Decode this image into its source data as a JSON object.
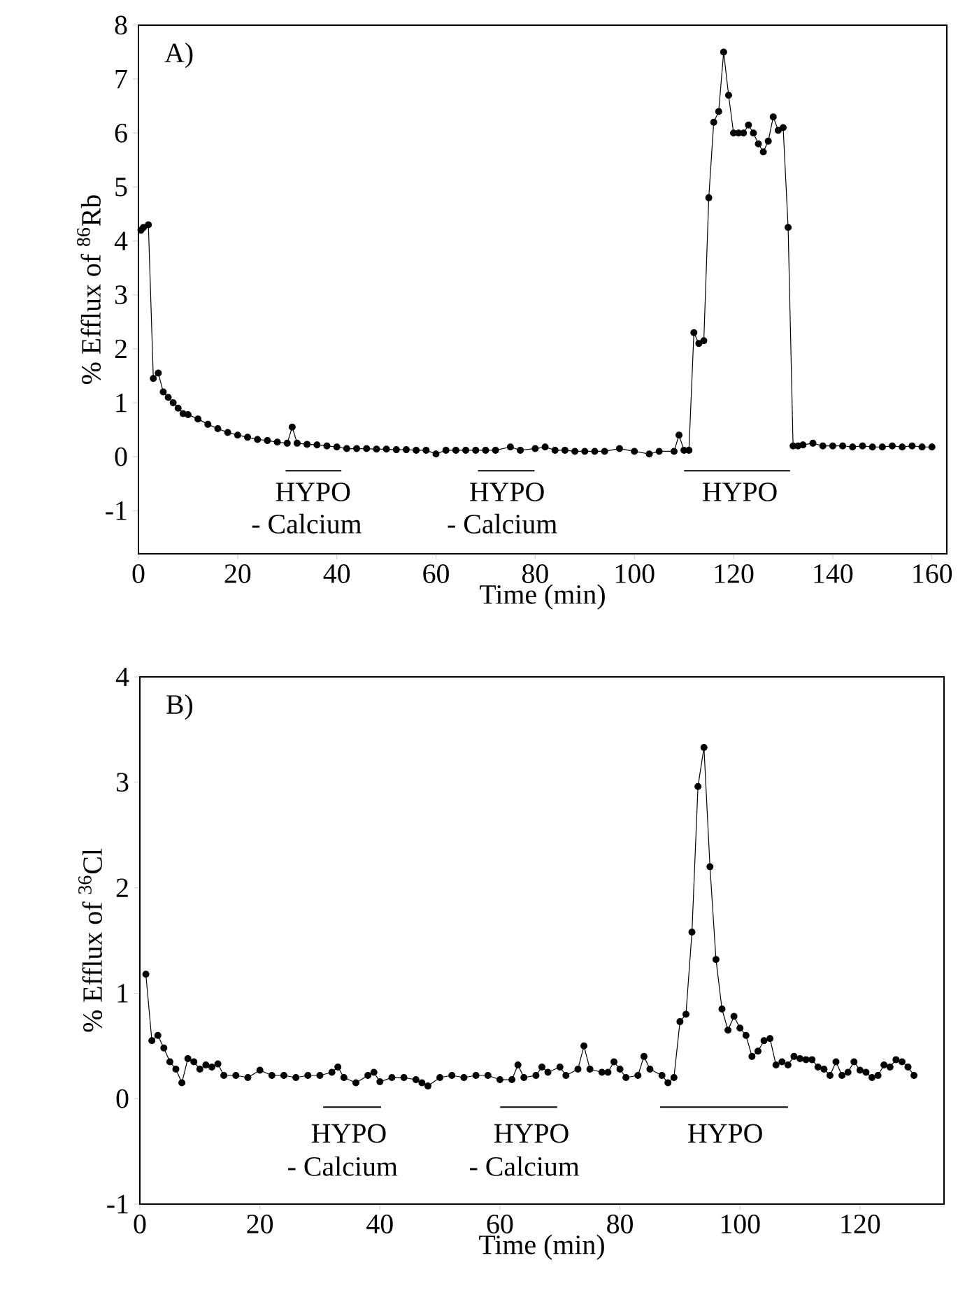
{
  "chart_data": [
    {
      "type": "line",
      "xlabel": "Time (min)",
      "ylabel": "% Efflux of $^{86}$Rb",
      "annotations": [
        "A)",
        "HYPO",
        "- Calcium",
        "HYPO",
        "- Calcium",
        "HYPO"
      ],
      "xlim": [
        0,
        163
      ],
      "ylim": [
        -1.8,
        8
      ],
      "xticks": [
        0,
        20,
        40,
        60,
        80,
        100,
        120,
        140,
        160
      ],
      "yticks": [
        -1,
        0,
        1,
        2,
        3,
        4,
        5,
        6,
        7,
        8
      ],
      "marker": "circle",
      "line_style": "solid",
      "series": [
        {
          "color": "#000000",
          "x": [
            0.5,
            1,
            2,
            3,
            4,
            5,
            6,
            7,
            8,
            9,
            10,
            12,
            14,
            16,
            18,
            20,
            22,
            24,
            26,
            28,
            30,
            31,
            32,
            34,
            36,
            38,
            40,
            42,
            44,
            46,
            48,
            50,
            52,
            54,
            56,
            58,
            60,
            62,
            64,
            66,
            68,
            70,
            72,
            75,
            77,
            80,
            82,
            84,
            86,
            88,
            90,
            92,
            94,
            97,
            100,
            103,
            105,
            108,
            109,
            110,
            111,
            112,
            113,
            114,
            115,
            116,
            117,
            118,
            119,
            120,
            121,
            122,
            123,
            124,
            125,
            126,
            127,
            128,
            129,
            130,
            131,
            132,
            133,
            134,
            136,
            138,
            140,
            142,
            144,
            146,
            148,
            150,
            152,
            154,
            156,
            158,
            160
          ],
          "values": [
            4.2,
            4.25,
            4.3,
            1.45,
            1.55,
            1.2,
            1.1,
            1.0,
            0.9,
            0.8,
            0.78,
            0.7,
            0.6,
            0.52,
            0.45,
            0.4,
            0.36,
            0.32,
            0.3,
            0.27,
            0.25,
            0.55,
            0.25,
            0.23,
            0.22,
            0.2,
            0.18,
            0.15,
            0.15,
            0.15,
            0.14,
            0.14,
            0.13,
            0.13,
            0.12,
            0.12,
            0.05,
            0.12,
            0.12,
            0.12,
            0.12,
            0.12,
            0.12,
            0.18,
            0.12,
            0.15,
            0.18,
            0.12,
            0.12,
            0.1,
            0.1,
            0.1,
            0.1,
            0.15,
            0.1,
            0.05,
            0.1,
            0.1,
            0.4,
            0.12,
            0.12,
            2.3,
            2.1,
            2.15,
            4.8,
            6.2,
            6.4,
            7.5,
            6.7,
            6.0,
            6.0,
            6.0,
            6.15,
            6.0,
            5.8,
            5.65,
            5.85,
            6.3,
            6.05,
            6.1,
            4.25,
            0.2,
            0.2,
            0.22,
            0.25,
            0.2,
            0.2,
            0.2,
            0.18,
            0.2,
            0.18,
            0.18,
            0.2,
            0.18,
            0.2,
            0.18,
            0.18
          ]
        }
      ]
    },
    {
      "type": "line",
      "xlabel": "Time (min)",
      "ylabel": "% Efflux of $^{36}$Cl",
      "annotations": [
        "B)",
        "HYPO",
        "- Calcium",
        "HYPO",
        "- Calcium",
        "HYPO"
      ],
      "xlim": [
        0,
        134
      ],
      "ylim": [
        -1,
        4
      ],
      "xticks": [
        0,
        20,
        40,
        60,
        80,
        100,
        120
      ],
      "yticks": [
        -1,
        0,
        1,
        2,
        3,
        4
      ],
      "marker": "circle",
      "line_style": "solid",
      "series": [
        {
          "color": "#000000",
          "x": [
            1,
            2,
            3,
            4,
            5,
            6,
            7,
            8,
            9,
            10,
            11,
            12,
            13,
            14,
            16,
            18,
            20,
            22,
            24,
            26,
            28,
            30,
            32,
            33,
            34,
            36,
            38,
            39,
            40,
            42,
            44,
            46,
            47,
            48,
            50,
            52,
            54,
            56,
            58,
            60,
            62,
            63,
            64,
            66,
            67,
            68,
            70,
            71,
            73,
            74,
            75,
            77,
            78,
            79,
            80,
            81,
            83,
            84,
            85,
            87,
            88,
            89,
            90,
            91,
            92,
            93,
            94,
            95,
            96,
            97,
            98,
            99,
            100,
            101,
            102,
            103,
            104,
            105,
            106,
            107,
            108,
            109,
            110,
            111,
            112,
            113,
            114,
            115,
            116,
            117,
            118,
            119,
            120,
            121,
            122,
            123,
            124,
            125,
            126,
            127,
            128,
            129
          ],
          "values": [
            1.18,
            0.55,
            0.6,
            0.48,
            0.35,
            0.28,
            0.15,
            0.38,
            0.35,
            0.28,
            0.32,
            0.3,
            0.33,
            0.22,
            0.22,
            0.2,
            0.27,
            0.22,
            0.22,
            0.2,
            0.22,
            0.22,
            0.25,
            0.3,
            0.2,
            0.15,
            0.22,
            0.25,
            0.16,
            0.2,
            0.2,
            0.18,
            0.15,
            0.12,
            0.2,
            0.22,
            0.2,
            0.22,
            0.22,
            0.18,
            0.18,
            0.32,
            0.2,
            0.22,
            0.3,
            0.25,
            0.3,
            0.22,
            0.28,
            0.5,
            0.28,
            0.25,
            0.25,
            0.35,
            0.28,
            0.2,
            0.22,
            0.4,
            0.28,
            0.22,
            0.15,
            0.2,
            0.73,
            0.8,
            1.58,
            2.96,
            3.33,
            2.2,
            1.32,
            0.85,
            0.65,
            0.78,
            0.67,
            0.6,
            0.4,
            0.45,
            0.55,
            0.57,
            0.32,
            0.35,
            0.32,
            0.4,
            0.38,
            0.37,
            0.37,
            0.3,
            0.28,
            0.22,
            0.35,
            0.22,
            0.25,
            0.35,
            0.27,
            0.25,
            0.2,
            0.22,
            0.32,
            0.3,
            0.37,
            0.35,
            0.3,
            0.22
          ]
        }
      ]
    }
  ]
}
